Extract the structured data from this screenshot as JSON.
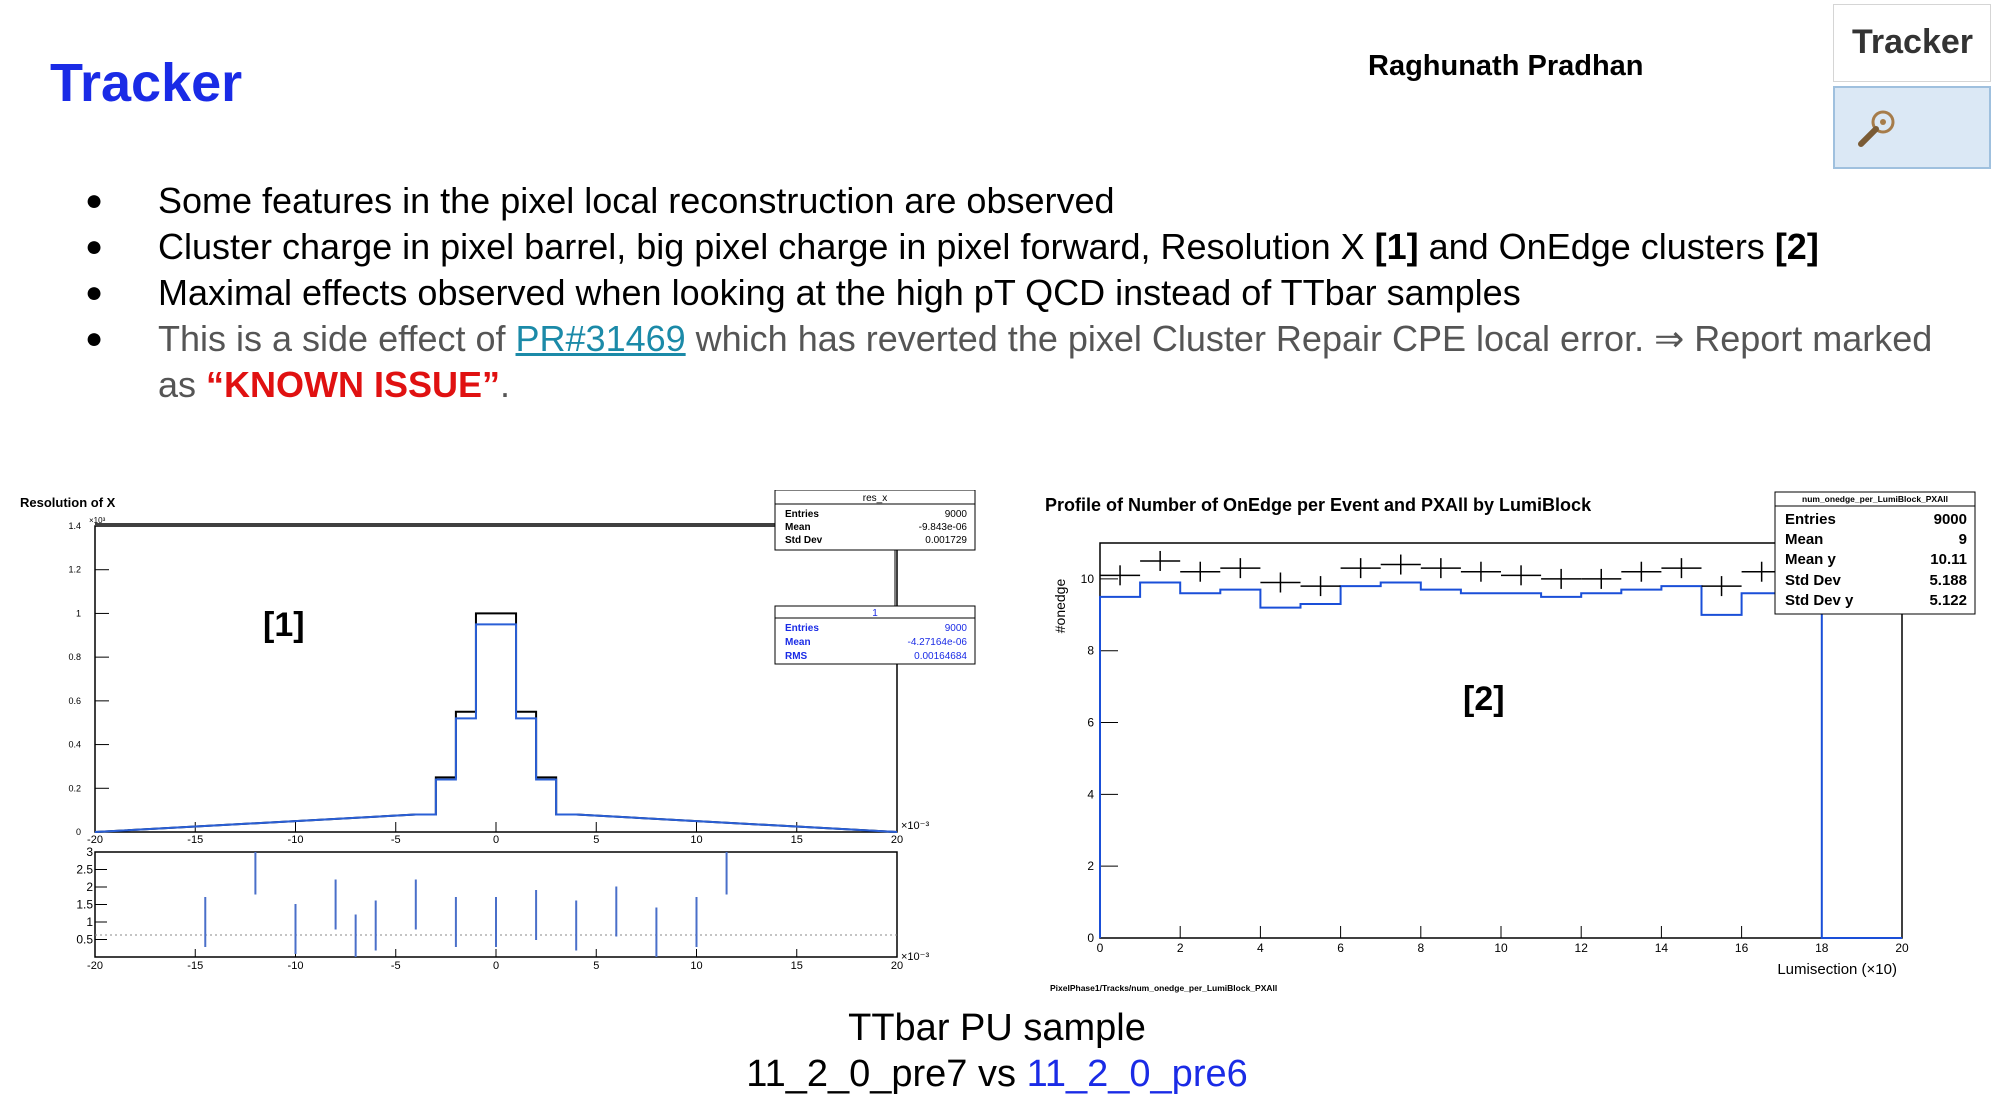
{
  "slide": {
    "title": "Tracker",
    "author": "Raghunath Pradhan",
    "badge_label": "Tracker",
    "bullets": {
      "b1": "Some features in the pixel local reconstruction are observed",
      "b2_pre": "Cluster charge in pixel barrel, big pixel charge in pixel forward, Resolution X ",
      "b2_ref1": "[1]",
      "b2_mid": " and OnEdge clusters ",
      "b2_ref2": "[2]",
      "b3": "Maximal effects observed when looking at the high pT QCD instead of TTbar samples",
      "b4_pre": "This is a side effect of ",
      "b4_link": "PR#31469",
      "b4_post": " which has reverted the pixel Cluster Repair CPE local error. ⇒ Report marked as ",
      "b4_issue": "“KNOWN ISSUE”",
      "b4_end": "."
    },
    "caption_line1": "TTbar PU sample",
    "caption_ref": "11_2_0_pre7 vs ",
    "caption_new": "11_2_0_pre6"
  },
  "colors": {
    "title": "#1a2be6",
    "issue": "#e01111",
    "link": "#1b8aa8",
    "reference": "#1a2be6"
  },
  "chart_data": [
    {
      "type": "line",
      "title": "Resolution of X",
      "ref_label": "[1]",
      "x_exponent": "×10⁻³",
      "y_exponent": "×10³",
      "xlim": [
        -20,
        20
      ],
      "ylim": [
        0,
        1.4
      ],
      "xticks": [
        -20,
        -15,
        -10,
        -5,
        0,
        5,
        10,
        15,
        20
      ],
      "yticks": [
        0,
        0.2,
        0.4,
        0.6,
        0.8,
        1,
        1.2,
        1.4
      ],
      "x": [
        -3.5,
        -2.5,
        -1.5,
        -0.5,
        0.5,
        1.5,
        2.5,
        3.5
      ],
      "series": [
        {
          "color": "#000000",
          "values": [
            0.08,
            0.25,
            0.55,
            1.0,
            1.0,
            0.55,
            0.25,
            0.08
          ]
        },
        {
          "color": "#2a5fd6",
          "values": [
            0.08,
            0.24,
            0.52,
            0.95,
            0.95,
            0.52,
            0.24,
            0.08
          ]
        }
      ],
      "stats": [
        {
          "header": "res_x",
          "rows": [
            [
              "Entries",
              "9000"
            ],
            [
              "Mean",
              "-9.843e-06"
            ],
            [
              "Std Dev",
              "0.001729"
            ]
          ]
        },
        {
          "header": "1",
          "rows": [
            [
              "Entries",
              "9000"
            ],
            [
              "Mean",
              "-4.27164e-06"
            ],
            [
              "RMS",
              "0.00164684"
            ]
          ]
        }
      ],
      "ratio": {
        "ylim": [
          0,
          3
        ],
        "yticks": [
          "0.5",
          "1",
          "1.5",
          "2",
          "2.5",
          "3"
        ],
        "x": [
          -14.5,
          -12,
          -10,
          -8,
          -7,
          -6,
          -4,
          -2,
          0,
          2,
          4,
          6,
          8,
          10,
          11.5
        ],
        "values": [
          1,
          2.5,
          0.8,
          1.5,
          0.5,
          0.9,
          1.5,
          1.0,
          1.0,
          1.2,
          0.9,
          1.3,
          0.7,
          1.0,
          2.5
        ]
      }
    },
    {
      "type": "line",
      "title": "Profile of Number of OnEdge per Event and PXAll by LumiBlock",
      "ref_label": "[2]",
      "ylabel": "#onedge",
      "xlabel": "Lumisection (×10)",
      "footer": "PixelPhase1/Tracks/num_onedge_per_LumiBlock_PXAll",
      "xlim": [
        0,
        20
      ],
      "ylim": [
        0,
        11
      ],
      "xticks": [
        0,
        2,
        4,
        6,
        8,
        10,
        12,
        14,
        16,
        18,
        20
      ],
      "yticks": [
        0,
        2,
        4,
        6,
        8,
        10
      ],
      "x": [
        0.5,
        1.5,
        2.5,
        3.5,
        4.5,
        5.5,
        6.5,
        7.5,
        8.5,
        9.5,
        10.5,
        11.5,
        12.5,
        13.5,
        14.5,
        15.5,
        16.5,
        17.5
      ],
      "series": [
        {
          "name": "black",
          "color": "#000000",
          "values": [
            10.1,
            10.5,
            10.2,
            10.3,
            9.9,
            9.8,
            10.3,
            10.4,
            10.3,
            10.2,
            10.1,
            10.0,
            10.0,
            10.2,
            10.3,
            9.8,
            10.2,
            10.3
          ]
        },
        {
          "name": "blue",
          "color": "#1a4fd8",
          "values": [
            9.5,
            9.9,
            9.6,
            9.7,
            9.2,
            9.3,
            9.8,
            9.9,
            9.7,
            9.6,
            9.6,
            9.5,
            9.6,
            9.7,
            9.8,
            9.0,
            9.6,
            9.6
          ]
        }
      ],
      "stats": {
        "header": "num_onedge_per_LumiBlock_PXAll",
        "rows": [
          [
            "Entries",
            "9000"
          ],
          [
            "Mean",
            "9"
          ],
          [
            "Mean y",
            "10.11"
          ],
          [
            "Std Dev",
            "5.188"
          ],
          [
            "Std Dev y",
            "5.122"
          ]
        ]
      }
    }
  ]
}
